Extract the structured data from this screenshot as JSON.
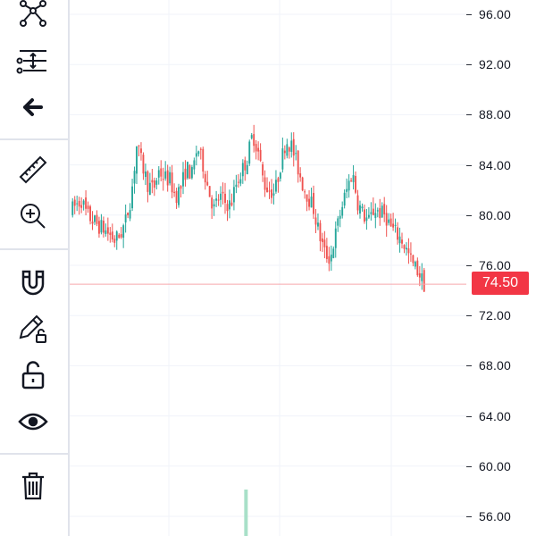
{
  "toolbar": {
    "tools": [
      {
        "id": "pattern",
        "icon": "pattern-icon"
      },
      {
        "id": "fib",
        "icon": "fib-retracement-icon"
      },
      {
        "id": "back",
        "icon": "arrow-left-icon"
      },
      {
        "id": "measure",
        "icon": "ruler-icon"
      },
      {
        "id": "zoom",
        "icon": "zoom-in-icon"
      },
      {
        "id": "magnet",
        "icon": "magnet-icon"
      },
      {
        "id": "lock-drawings",
        "icon": "pencil-lock-icon"
      },
      {
        "id": "lock-all",
        "icon": "unlock-icon"
      },
      {
        "id": "hide",
        "icon": "eye-icon"
      },
      {
        "id": "remove",
        "icon": "trash-icon"
      }
    ]
  },
  "price_axis": {
    "ticks": [
      "96.00",
      "92.00",
      "88.00",
      "84.00",
      "80.00",
      "76.00",
      "72.00",
      "68.00",
      "64.00",
      "60.00",
      "56.00"
    ],
    "last_price": "74.50"
  },
  "colors": {
    "up": "#26a69a",
    "down": "#ef5350",
    "last_price_bg": "#f23645",
    "grid": "#f0f3fa",
    "price_line": "#f7a6ac"
  },
  "chart_data": {
    "type": "candlestick",
    "ylim": [
      54.5,
      97.5
    ],
    "grid": true,
    "last_price": 74.5,
    "close_path": [
      80.3,
      80.8,
      81.2,
      80.0,
      79.6,
      79.2,
      78.9,
      78.5,
      78.0,
      78.4,
      79.5,
      81.5,
      85.5,
      84.0,
      82.5,
      82.0,
      83.5,
      83.0,
      82.8,
      81.5,
      82.2,
      83.8,
      83.2,
      85.5,
      84.0,
      82.0,
      80.5,
      81.5,
      81.0,
      80.8,
      82.5,
      83.5,
      84.5,
      86.5,
      85.0,
      82.5,
      82.0,
      81.8,
      84.0,
      86.0,
      85.5,
      84.0,
      82.5,
      81.5,
      80.5,
      78.5,
      77.0,
      76.5,
      78.5,
      80.5,
      82.0,
      83.5,
      81.0,
      80.0,
      79.5,
      80.5,
      80.2,
      80.0,
      79.0,
      78.5,
      78.0,
      77.0,
      76.0,
      75.5,
      74.5
    ],
    "volume_bar": {
      "position_fraction": 0.44,
      "color": "#a8e0c8"
    }
  }
}
